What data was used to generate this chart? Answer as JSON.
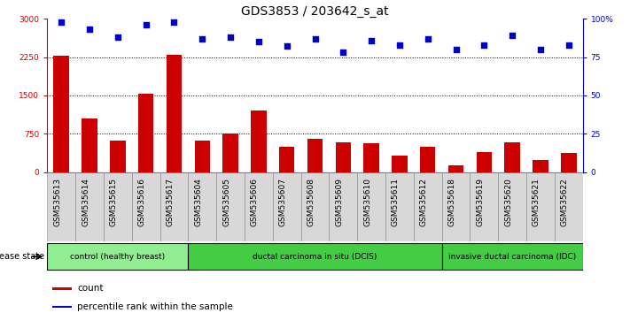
{
  "title": "GDS3853 / 203642_s_at",
  "categories": [
    "GSM535613",
    "GSM535614",
    "GSM535615",
    "GSM535616",
    "GSM535617",
    "GSM535604",
    "GSM535605",
    "GSM535606",
    "GSM535607",
    "GSM535608",
    "GSM535609",
    "GSM535610",
    "GSM535611",
    "GSM535612",
    "GSM535618",
    "GSM535619",
    "GSM535620",
    "GSM535621",
    "GSM535622"
  ],
  "counts": [
    2270,
    1050,
    620,
    1540,
    2290,
    620,
    760,
    1200,
    490,
    660,
    580,
    560,
    330,
    490,
    130,
    390,
    580,
    230,
    370
  ],
  "percentiles": [
    98,
    93,
    88,
    96,
    98,
    87,
    88,
    85,
    82,
    87,
    78,
    86,
    83,
    87,
    80,
    83,
    89,
    80,
    83
  ],
  "groups": [
    {
      "label": "control (healthy breast)",
      "start": 0,
      "end": 5
    },
    {
      "label": "ductal carcinoma in situ (DCIS)",
      "start": 5,
      "end": 14
    },
    {
      "label": "invasive ductal carcinoma (IDC)",
      "start": 14,
      "end": 19
    }
  ],
  "group_colors": [
    "#90EE90",
    "#44CC44",
    "#44CC44"
  ],
  "bar_color": "#CC0000",
  "scatter_color": "#0000CC",
  "ylim_left": [
    0,
    3000
  ],
  "ylim_right": [
    0,
    100
  ],
  "yticks_left": [
    0,
    750,
    1500,
    2250,
    3000
  ],
  "yticks_right": [
    0,
    25,
    50,
    75,
    100
  ],
  "background_color": "#ffffff",
  "title_fontsize": 10,
  "tick_fontsize": 6.5,
  "legend_items": [
    "count",
    "percentile rank within the sample"
  ],
  "disease_state_label": "disease state"
}
